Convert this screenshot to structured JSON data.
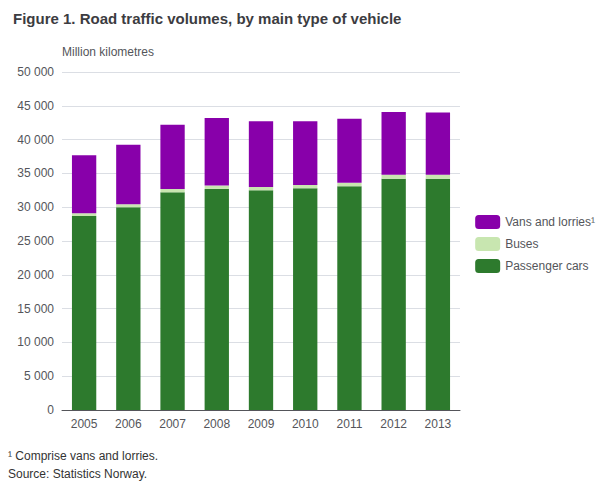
{
  "chart_data": {
    "type": "bar",
    "stacked": true,
    "title": "Figure 1. Road traffic volumes, by main type of vehicle",
    "y_label": "Million kilometres",
    "categories": [
      "2005",
      "2006",
      "2007",
      "2008",
      "2009",
      "2010",
      "2011",
      "2012",
      "2013"
    ],
    "series": [
      {
        "name": "Passenger cars",
        "color": "#2d7a2d",
        "values": [
          28700,
          30000,
          32200,
          32700,
          32500,
          32800,
          33100,
          34200,
          34200
        ]
      },
      {
        "name": "Buses",
        "color": "#c8e6b0",
        "values": [
          400,
          450,
          500,
          500,
          500,
          500,
          500,
          600,
          600
        ]
      },
      {
        "name": "Vans and lorries¹",
        "color": "#8800aa",
        "values": [
          8600,
          8800,
          9500,
          10000,
          9700,
          9400,
          9500,
          9300,
          9200
        ]
      }
    ],
    "ylim": [
      0,
      50000
    ],
    "yticks": [
      0,
      {
        "value": 5000,
        "label": "5 000"
      },
      {
        "value": 10000,
        "label": "10 000"
      },
      {
        "value": 15000,
        "label": "15 000"
      },
      {
        "value": 20000,
        "label": "20 000"
      },
      {
        "value": 25000,
        "label": "25 000"
      },
      {
        "value": 30000,
        "label": "30 000"
      },
      {
        "value": 35000,
        "label": "35 000"
      },
      {
        "value": 40000,
        "label": "40 000"
      },
      {
        "value": 45000,
        "label": "45 000"
      },
      {
        "value": 50000,
        "label": "50 000"
      }
    ],
    "grid": true,
    "legend": "right",
    "annotations": [
      "¹ Comprise vans and lorries.",
      "Source: Statistics Norway."
    ]
  }
}
